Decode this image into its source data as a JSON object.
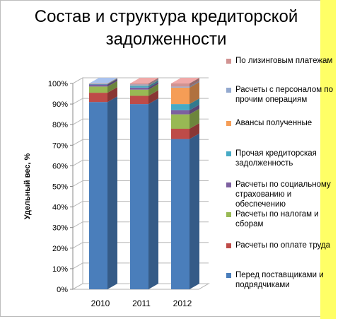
{
  "chart_data": {
    "type": "bar",
    "stacked": true,
    "percent_stacked": true,
    "three_d": true,
    "title": "Состав и структура кредиторской задолженности",
    "xlabel": "",
    "ylabel": "Удельный вес, %",
    "ylim": [
      0,
      100
    ],
    "yticks": [
      "0%",
      "10%",
      "20%",
      "30%",
      "40%",
      "50%",
      "60%",
      "70%",
      "80%",
      "90%",
      "100%"
    ],
    "categories": [
      "2010",
      "2011",
      "2012"
    ],
    "legend_position": "right",
    "series": [
      {
        "name": "Перед поставщиками и подрядчиками",
        "color": "#4a7ebb",
        "values": [
          91,
          90,
          73
        ]
      },
      {
        "name": "Расчеты по оплате труда",
        "color": "#be4b48",
        "values": [
          4.5,
          4,
          5
        ]
      },
      {
        "name": "Расчеты по налогам и сборам",
        "color": "#98b954",
        "values": [
          3,
          3,
          7
        ]
      },
      {
        "name": "Расчеты по социальному страхованию и обеспечению",
        "color": "#7d60a0",
        "values": [
          1,
          1,
          2
        ]
      },
      {
        "name": "Прочая кредиторская задолженность",
        "color": "#46aac5",
        "values": [
          0.2,
          0.8,
          3
        ]
      },
      {
        "name": "Авансы полученные",
        "color": "#f59d56",
        "values": [
          0.2,
          0.2,
          8
        ]
      },
      {
        "name": "Расчеты с персоналом по прочим операциям",
        "color": "#93a9cf",
        "values": [
          0.1,
          0.5,
          0.5
        ]
      },
      {
        "name": "По лизинговым платежам",
        "color": "#d19392",
        "values": [
          0,
          0.5,
          1.5
        ]
      }
    ]
  }
}
